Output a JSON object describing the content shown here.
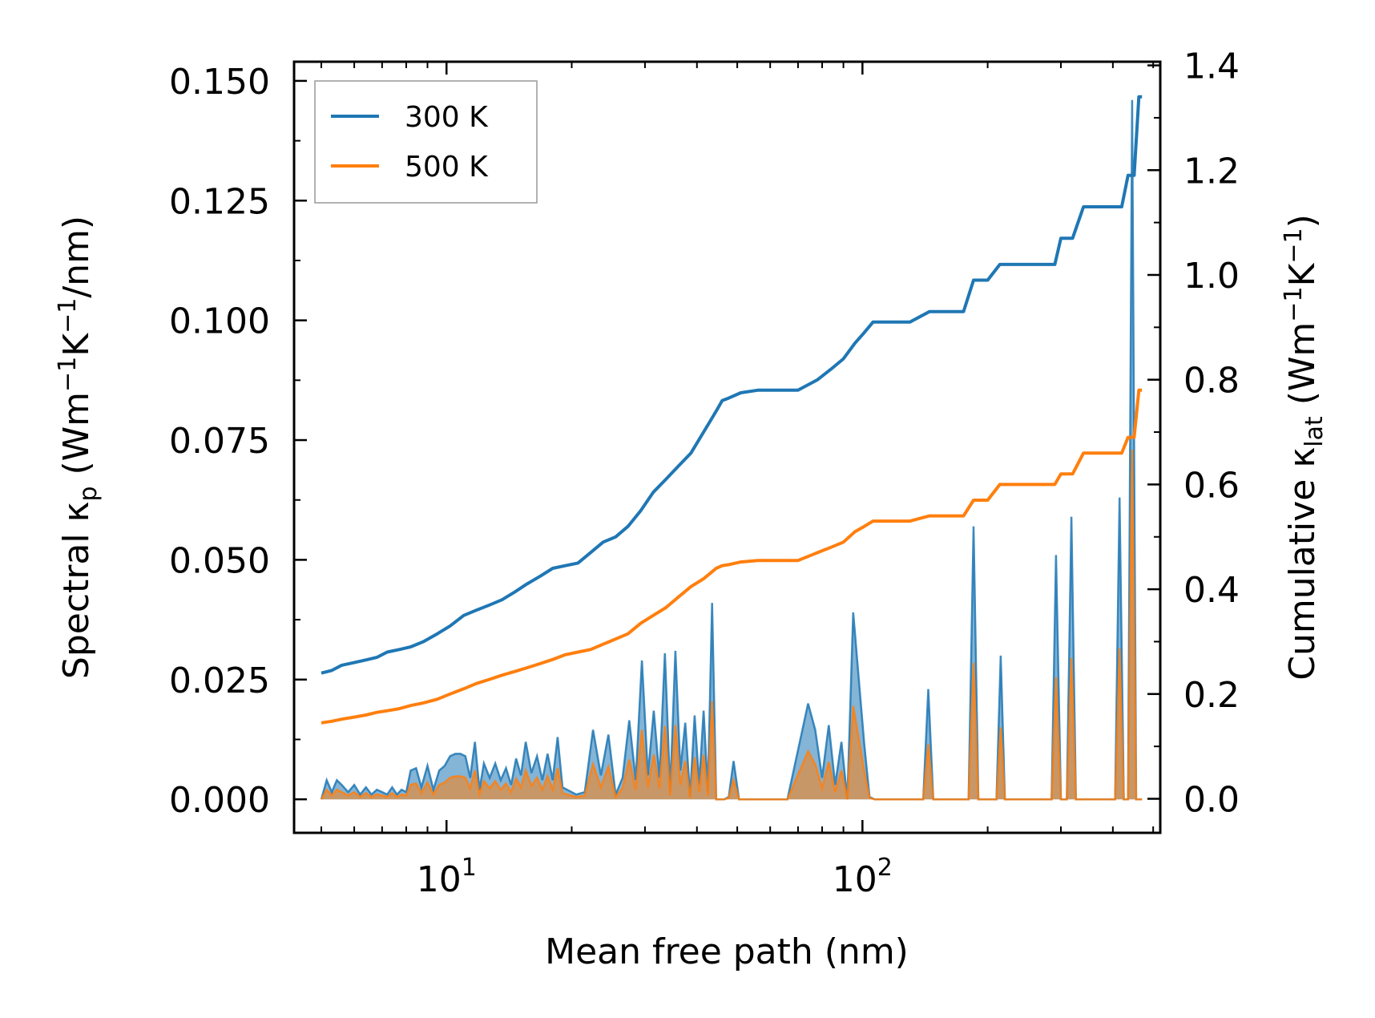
{
  "chart_data": {
    "type": "line",
    "x_scale": "log",
    "x_range": [
      4.3,
      520
    ],
    "y_left_range": [
      -0.007,
      0.154
    ],
    "y_right_range": [
      -0.065,
      1.407
    ],
    "xlabel": "Mean free path (nm)",
    "ylabel_left": {
      "main": "Spectral κ",
      "sub": "p",
      "units": " (Wm",
      "sup1": "−1",
      "mid": "K",
      "sup2": "−1",
      "tail": "/nm)"
    },
    "ylabel_right": {
      "main": "Cumulative κ",
      "sub": "lat",
      "units": " (Wm",
      "sup1": "−1",
      "mid": "K",
      "sup2": "−1",
      "tail": ")"
    },
    "x_ticks": [
      {
        "value": 10,
        "base": "10",
        "exp": "1"
      },
      {
        "value": 100,
        "base": "10",
        "exp": "2"
      }
    ],
    "y_left_ticks": [
      {
        "value": 0.0,
        "label": "0.000"
      },
      {
        "value": 0.025,
        "label": "0.025"
      },
      {
        "value": 0.05,
        "label": "0.050"
      },
      {
        "value": 0.075,
        "label": "0.075"
      },
      {
        "value": 0.1,
        "label": "0.100"
      },
      {
        "value": 0.125,
        "label": "0.125"
      },
      {
        "value": 0.15,
        "label": "0.150"
      }
    ],
    "y_right_ticks": [
      {
        "value": 0.0,
        "label": "0.0"
      },
      {
        "value": 0.2,
        "label": "0.2"
      },
      {
        "value": 0.4,
        "label": "0.4"
      },
      {
        "value": 0.6,
        "label": "0.6"
      },
      {
        "value": 0.8,
        "label": "0.8"
      },
      {
        "value": 1.0,
        "label": "1.0"
      },
      {
        "value": 1.2,
        "label": "1.2"
      },
      {
        "value": 1.4,
        "label": "1.4"
      }
    ],
    "legend": {
      "position": "upper-left",
      "entries": [
        {
          "label": "300 K",
          "color": "#1f77b4"
        },
        {
          "label": "500 K",
          "color": "#ff7f0e"
        }
      ]
    },
    "series": [
      {
        "name": "300 K",
        "color": "#1f77b4",
        "axis": "right",
        "kind": "cumulative",
        "x": [
          5.0,
          5.3,
          5.6,
          6.0,
          6.4,
          6.8,
          7.2,
          7.7,
          8.2,
          8.8,
          9.5,
          10.2,
          11.0,
          11.8,
          12.7,
          13.6,
          14.6,
          15.6,
          16.8,
          18.0,
          19.3,
          20.7,
          22.2,
          23.8,
          25.5,
          27.3,
          29.3,
          31.4,
          33.7,
          36.1,
          38.7,
          41.5,
          44.5,
          46.0,
          47.7,
          51.0,
          56.0,
          62.0,
          70.0,
          78.0,
          84.0,
          90.0,
          96.0,
          101.0,
          106.0,
          130.0,
          145.0,
          175.0,
          185.0,
          200.0,
          214.0,
          225.0,
          290.0,
          300.0,
          320.0,
          340.0,
          420.0,
          435.0,
          450.0,
          462.0,
          470.0
        ],
        "y": [
          0.24,
          0.245,
          0.255,
          0.26,
          0.265,
          0.27,
          0.28,
          0.285,
          0.29,
          0.3,
          0.315,
          0.33,
          0.35,
          0.36,
          0.37,
          0.38,
          0.395,
          0.41,
          0.425,
          0.44,
          0.445,
          0.45,
          0.47,
          0.49,
          0.5,
          0.52,
          0.55,
          0.585,
          0.61,
          0.635,
          0.66,
          0.7,
          0.74,
          0.76,
          0.765,
          0.775,
          0.78,
          0.78,
          0.78,
          0.8,
          0.82,
          0.84,
          0.87,
          0.89,
          0.91,
          0.91,
          0.93,
          0.93,
          0.99,
          0.99,
          1.02,
          1.02,
          1.02,
          1.07,
          1.07,
          1.13,
          1.13,
          1.19,
          1.19,
          1.34,
          1.34
        ]
      },
      {
        "name": "500 K",
        "color": "#ff7f0e",
        "axis": "right",
        "kind": "cumulative",
        "x": [
          5.0,
          5.3,
          5.6,
          6.0,
          6.4,
          6.8,
          7.2,
          7.7,
          8.2,
          8.8,
          9.5,
          10.2,
          11.0,
          11.8,
          12.7,
          13.6,
          14.6,
          15.6,
          16.8,
          18.0,
          19.3,
          20.7,
          22.2,
          23.8,
          25.5,
          27.3,
          29.3,
          31.4,
          33.7,
          36.1,
          38.7,
          41.5,
          44.5,
          46.0,
          47.7,
          51.0,
          56.0,
          62.0,
          70.0,
          78.0,
          84.0,
          90.0,
          96.0,
          101.0,
          106.0,
          130.0,
          145.0,
          175.0,
          185.0,
          200.0,
          214.0,
          225.0,
          290.0,
          300.0,
          320.0,
          340.0,
          420.0,
          435.0,
          450.0,
          462.0,
          470.0
        ],
        "y": [
          0.145,
          0.148,
          0.152,
          0.156,
          0.16,
          0.165,
          0.168,
          0.172,
          0.178,
          0.183,
          0.19,
          0.2,
          0.21,
          0.22,
          0.228,
          0.236,
          0.243,
          0.25,
          0.258,
          0.266,
          0.275,
          0.28,
          0.285,
          0.295,
          0.305,
          0.315,
          0.335,
          0.35,
          0.365,
          0.385,
          0.405,
          0.42,
          0.44,
          0.445,
          0.447,
          0.452,
          0.455,
          0.455,
          0.455,
          0.47,
          0.48,
          0.49,
          0.51,
          0.52,
          0.53,
          0.53,
          0.54,
          0.54,
          0.57,
          0.57,
          0.6,
          0.6,
          0.6,
          0.62,
          0.62,
          0.66,
          0.66,
          0.69,
          0.69,
          0.78,
          0.78
        ]
      },
      {
        "name": "300 K",
        "color": "#1f77b4",
        "axis": "left",
        "kind": "spectral",
        "x": [
          5.0,
          5.15,
          5.3,
          5.45,
          5.6,
          5.8,
          6.0,
          6.2,
          6.4,
          6.6,
          6.8,
          7.0,
          7.2,
          7.4,
          7.6,
          7.8,
          8.0,
          8.2,
          8.45,
          8.7,
          9.0,
          9.3,
          9.6,
          9.9,
          10.2,
          10.5,
          10.8,
          11.1,
          11.4,
          11.7,
          12.0,
          12.3,
          12.7,
          13.1,
          13.5,
          13.9,
          14.3,
          14.7,
          15.1,
          15.5,
          16.0,
          16.5,
          17.0,
          17.5,
          18.0,
          18.5,
          19.0,
          19.5,
          20.5,
          21.5,
          22.5,
          23.5,
          24.5,
          25.5,
          26.5,
          27.5,
          28.5,
          29.5,
          30.5,
          31.5,
          32.5,
          33.5,
          34.5,
          35.5,
          36.5,
          37.5,
          38.5,
          39.5,
          40.5,
          41.5,
          42.5,
          43.5,
          44.5,
          45.5,
          46.5,
          47.7,
          49.0,
          50.5,
          52.0,
          54.0,
          56.0,
          58.0,
          60.0,
          66.0,
          74.0,
          77.0,
          80.0,
          83.0,
          86.0,
          89.0,
          92.0,
          95.0,
          98.0,
          101.0,
          104.0,
          107.0,
          110.0,
          140.0,
          144.0,
          148.0,
          180.0,
          185.0,
          190.0,
          210.0,
          215.0,
          220.0,
          285.0,
          292.0,
          300.0,
          310.0,
          318.0,
          326.0,
          334.0,
          405.0,
          415.0,
          425.0,
          435.0,
          445.0,
          455.0,
          462.0,
          470.0
        ],
        "y": [
          0.0,
          0.004,
          0.0015,
          0.004,
          0.003,
          0.0015,
          0.003,
          0.001,
          0.0025,
          0.001,
          0.002,
          0.0015,
          0.001,
          0.0025,
          0.001,
          0.002,
          0.0015,
          0.006,
          0.0065,
          0.0025,
          0.007,
          0.002,
          0.006,
          0.007,
          0.009,
          0.0095,
          0.0095,
          0.009,
          0.0045,
          0.012,
          0.002,
          0.0075,
          0.0045,
          0.0075,
          0.004,
          0.0065,
          0.003,
          0.0085,
          0.005,
          0.012,
          0.0055,
          0.009,
          0.004,
          0.0095,
          0.004,
          0.013,
          0.0025,
          0.002,
          0.001,
          0.0015,
          0.0145,
          0.005,
          0.0135,
          0.001,
          0.0045,
          0.0165,
          0.004,
          0.029,
          0.005,
          0.0185,
          0.0045,
          0.0305,
          0.0015,
          0.031,
          0.006,
          0.016,
          0.0005,
          0.0175,
          0.003,
          0.0185,
          0.0015,
          0.041,
          0.0,
          0.0,
          0.0,
          0.0005,
          0.008,
          0.0,
          0.0,
          0.0,
          0.0,
          0.0,
          0.0,
          0.0,
          0.02,
          0.0145,
          0.0045,
          0.0155,
          0.003,
          0.012,
          0.0,
          0.039,
          0.025,
          0.0115,
          0.0005,
          0.0,
          0.0,
          0.0,
          0.023,
          0.0,
          0.0,
          0.057,
          0.0,
          0.0,
          0.03,
          0.0,
          0.0,
          0.051,
          0.0,
          0.0,
          0.059,
          0.0,
          0.0,
          0.0,
          0.063,
          0.0,
          0.0,
          0.146,
          0.0,
          0.0,
          0.0
        ]
      },
      {
        "name": "500 K",
        "color": "#ff7f0e",
        "axis": "left",
        "kind": "spectral",
        "x": [
          5.0,
          5.15,
          5.3,
          5.45,
          5.6,
          5.8,
          6.0,
          6.2,
          6.4,
          6.6,
          6.8,
          7.0,
          7.2,
          7.4,
          7.6,
          7.8,
          8.0,
          8.2,
          8.45,
          8.7,
          9.0,
          9.3,
          9.6,
          9.9,
          10.2,
          10.5,
          10.8,
          11.1,
          11.4,
          11.7,
          12.0,
          12.3,
          12.7,
          13.1,
          13.5,
          13.9,
          14.3,
          14.7,
          15.1,
          15.5,
          16.0,
          16.5,
          17.0,
          17.5,
          18.0,
          18.5,
          19.0,
          19.5,
          20.5,
          21.5,
          22.5,
          23.5,
          24.5,
          25.5,
          26.5,
          27.5,
          28.5,
          29.5,
          30.5,
          31.5,
          32.5,
          33.5,
          34.5,
          35.5,
          36.5,
          37.5,
          38.5,
          39.5,
          40.5,
          41.5,
          42.5,
          43.5,
          44.5,
          45.5,
          46.5,
          47.7,
          49.0,
          50.5,
          52.0,
          54.0,
          56.0,
          58.0,
          60.0,
          66.0,
          74.0,
          77.0,
          80.0,
          83.0,
          86.0,
          89.0,
          92.0,
          95.0,
          98.0,
          101.0,
          104.0,
          107.0,
          110.0,
          140.0,
          144.0,
          148.0,
          180.0,
          185.0,
          190.0,
          210.0,
          215.0,
          220.0,
          285.0,
          292.0,
          300.0,
          310.0,
          318.0,
          326.0,
          334.0,
          405.0,
          415.0,
          425.0,
          435.0,
          445.0,
          455.0,
          462.0,
          470.0
        ],
        "y": [
          0.0,
          0.002,
          0.0008,
          0.002,
          0.0015,
          0.0008,
          0.0015,
          0.0005,
          0.0013,
          0.0005,
          0.001,
          0.0008,
          0.0005,
          0.0013,
          0.0005,
          0.001,
          0.0008,
          0.003,
          0.0033,
          0.0013,
          0.0035,
          0.001,
          0.003,
          0.0035,
          0.0045,
          0.0048,
          0.0048,
          0.0045,
          0.0023,
          0.006,
          0.001,
          0.0038,
          0.0023,
          0.0038,
          0.002,
          0.0033,
          0.0015,
          0.0043,
          0.0025,
          0.006,
          0.0028,
          0.0045,
          0.002,
          0.0048,
          0.002,
          0.0065,
          0.0013,
          0.001,
          0.0005,
          0.0008,
          0.0073,
          0.0025,
          0.0068,
          0.0005,
          0.0023,
          0.0083,
          0.002,
          0.0145,
          0.0025,
          0.0093,
          0.0023,
          0.0153,
          0.0008,
          0.0155,
          0.003,
          0.008,
          0.0003,
          0.0088,
          0.0015,
          0.0093,
          0.0008,
          0.0205,
          0.0,
          0.0,
          0.0,
          0.0003,
          0.004,
          0.0,
          0.0,
          0.0,
          0.0,
          0.0,
          0.0,
          0.0,
          0.01,
          0.0073,
          0.0023,
          0.0078,
          0.0015,
          0.006,
          0.0,
          0.0195,
          0.0125,
          0.0058,
          0.0003,
          0.0,
          0.0,
          0.0,
          0.0115,
          0.0,
          0.0,
          0.0285,
          0.0,
          0.0,
          0.015,
          0.0,
          0.0,
          0.0255,
          0.0,
          0.0,
          0.0295,
          0.0,
          0.0,
          0.0,
          0.0315,
          0.0,
          0.0,
          0.073,
          0.0,
          0.0,
          0.0
        ]
      }
    ]
  }
}
